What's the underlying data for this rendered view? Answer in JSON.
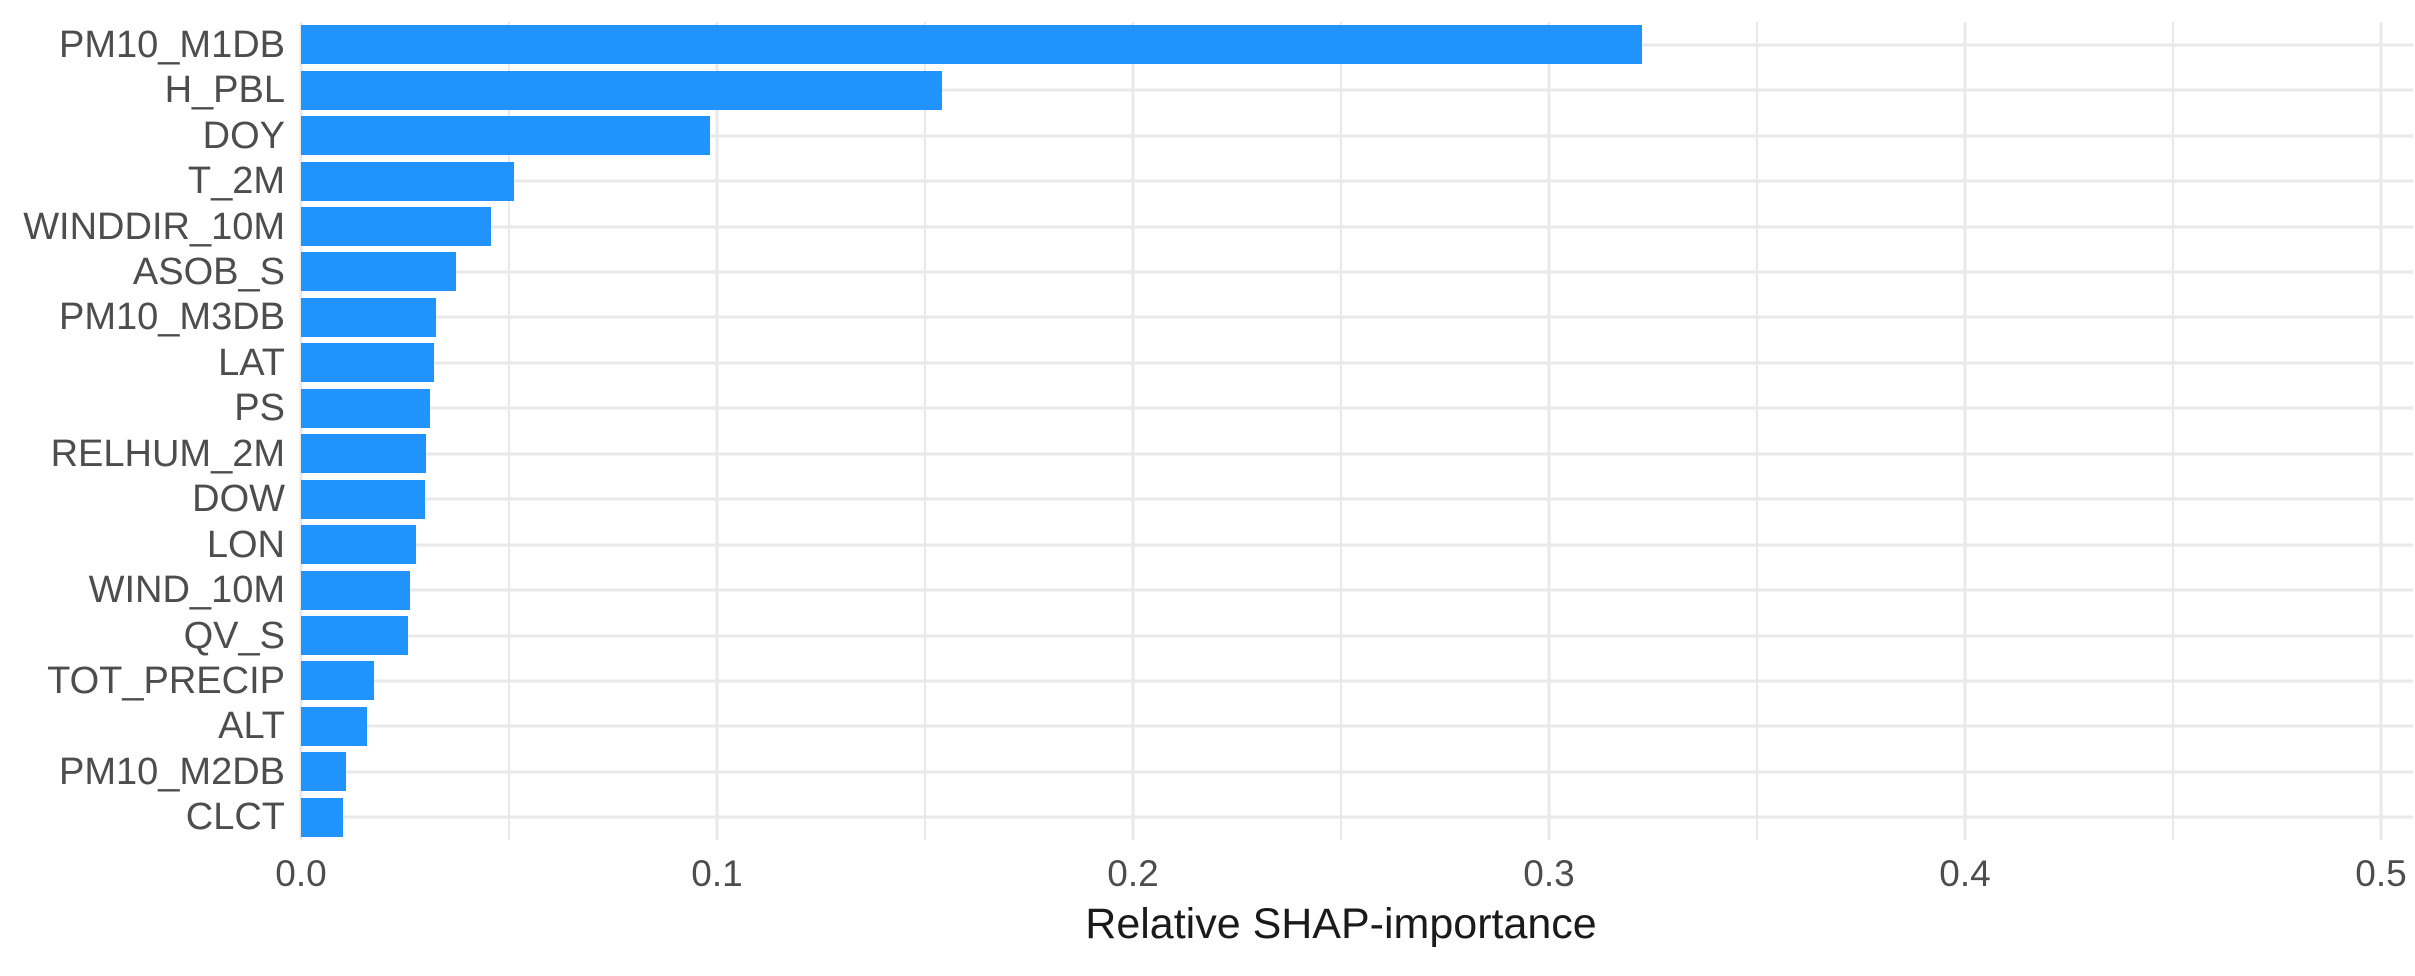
{
  "figure": {
    "background_color": "#FFFFFF"
  },
  "chart_data": {
    "type": "bar",
    "orientation": "horizontal",
    "title": "",
    "xlabel": "Relative SHAP-importance",
    "ylabel": "",
    "categories": [
      "PM10_M1DB",
      "H_PBL",
      "DOY",
      "T_2M",
      "WINDDIR_10M",
      "ASOB_S",
      "PM10_M3DB",
      "LAT",
      "PS",
      "RELHUM_2M",
      "DOW",
      "LON",
      "WIND_10M",
      "QV_S",
      "TOT_PRECIP",
      "ALT",
      "PM10_M2DB",
      "CLCT"
    ],
    "values": [
      0.3224,
      0.1542,
      0.0983,
      0.0513,
      0.0457,
      0.0372,
      0.0324,
      0.032,
      0.0311,
      0.03,
      0.0298,
      0.0276,
      0.0262,
      0.0257,
      0.0176,
      0.0159,
      0.0108,
      0.0102
    ],
    "xlim": [
      0,
      0.51
    ],
    "x_tick_values": [
      0,
      0.1,
      0.2,
      0.3,
      0.4,
      0.5
    ],
    "x_tick_labels": [
      "0.0",
      "0.1",
      "0.2",
      "0.3",
      "0.4",
      "0.5"
    ],
    "x_minor_tick_step": 0.05,
    "grid": "vertical lines every 0.05 (major every 0.1), horizontal line at each category center",
    "legend": "none",
    "colors": {
      "bar": "#2194FB",
      "grid": "#E9E9E9",
      "tick_label": "#4D4D4D",
      "axis_title": "#1A1A1A",
      "background": "#FFFFFF"
    }
  }
}
